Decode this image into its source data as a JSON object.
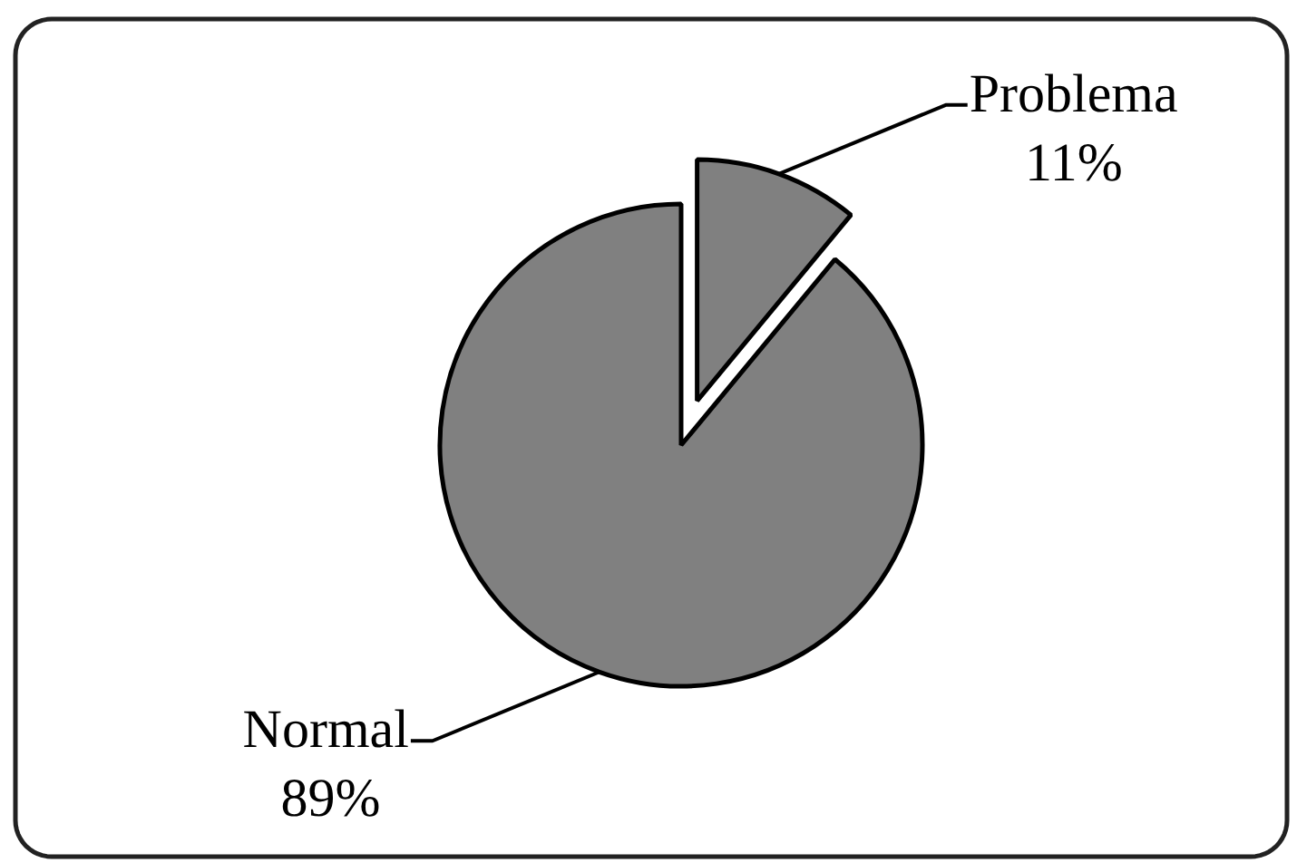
{
  "chart_data": {
    "type": "pie",
    "categories": [
      "Problema",
      "Normal"
    ],
    "values": [
      11,
      89
    ],
    "colors": [
      "#808080",
      "#808080"
    ],
    "value_labels": [
      "11%",
      "89%"
    ]
  }
}
